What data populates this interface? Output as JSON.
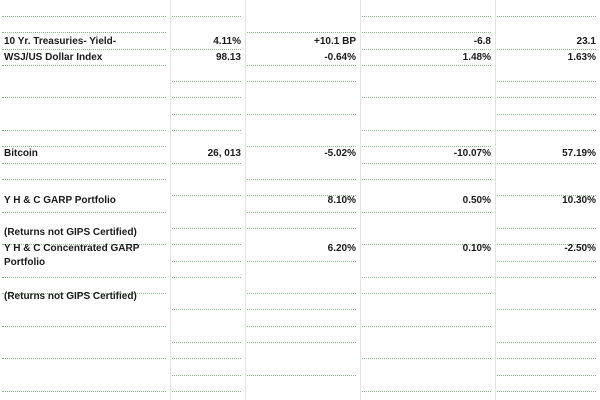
{
  "table": {
    "rows": [
      {
        "label": "10 Yr. Treasuries- Yield-",
        "values": [
          "4.11%",
          "+10.1 BP",
          "-6.8",
          "23.1"
        ]
      },
      {
        "label": "WSJ/US Dollar Index",
        "values": [
          "98.13",
          "-0.64%",
          "1.48%",
          "1.63%"
        ]
      },
      {
        "label": "Bitcoin",
        "values": [
          "26, 013",
          "-5.02%",
          "-10.07%",
          "57.19%"
        ]
      },
      {
        "label": "Y H & C GARP Portfolio",
        "values": [
          "8.10%",
          "0.50%",
          "10.30%"
        ]
      },
      {
        "label": "(Returns not GIPS Certified)",
        "values": []
      },
      {
        "label": "Y H & C Concentrated GARP",
        "values": [
          "6.20%",
          "0.10%",
          "-2.50%"
        ]
      },
      {
        "label": "Portfolio",
        "values": []
      },
      {
        "label": "(Returns not GIPS Certified)",
        "values": []
      }
    ]
  }
}
